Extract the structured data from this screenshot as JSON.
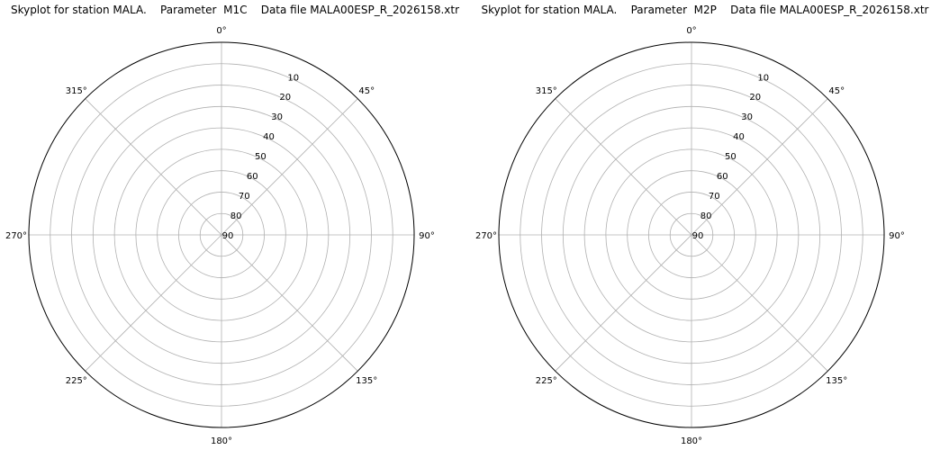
{
  "chart_data": [
    {
      "type": "scatter",
      "projection": "polar",
      "title": "Skyplot for station MALA.    Parameter  M1C    Data file MALA00ESP_R_2026158.xtr",
      "theta_direction": "clockwise",
      "theta_zero": "north",
      "azimuth_ticks": [
        "0°",
        "45°",
        "90°",
        "135°",
        "180°",
        "225°",
        "270°",
        "315°"
      ],
      "elevation_ticks": [
        "10",
        "20",
        "30",
        "40",
        "50",
        "60",
        "70",
        "80",
        "90"
      ],
      "elevation_range": [
        0,
        90
      ],
      "grid": true,
      "series": []
    },
    {
      "type": "scatter",
      "projection": "polar",
      "title": "Skyplot for station MALA.    Parameter  M2P    Data file MALA00ESP_R_2026158.xtr",
      "theta_direction": "clockwise",
      "theta_zero": "north",
      "azimuth_ticks": [
        "0°",
        "45°",
        "90°",
        "135°",
        "180°",
        "225°",
        "270°",
        "315°"
      ],
      "elevation_ticks": [
        "10",
        "20",
        "30",
        "40",
        "50",
        "60",
        "70",
        "80",
        "90"
      ],
      "elevation_range": [
        0,
        90
      ],
      "grid": true,
      "series": []
    }
  ]
}
